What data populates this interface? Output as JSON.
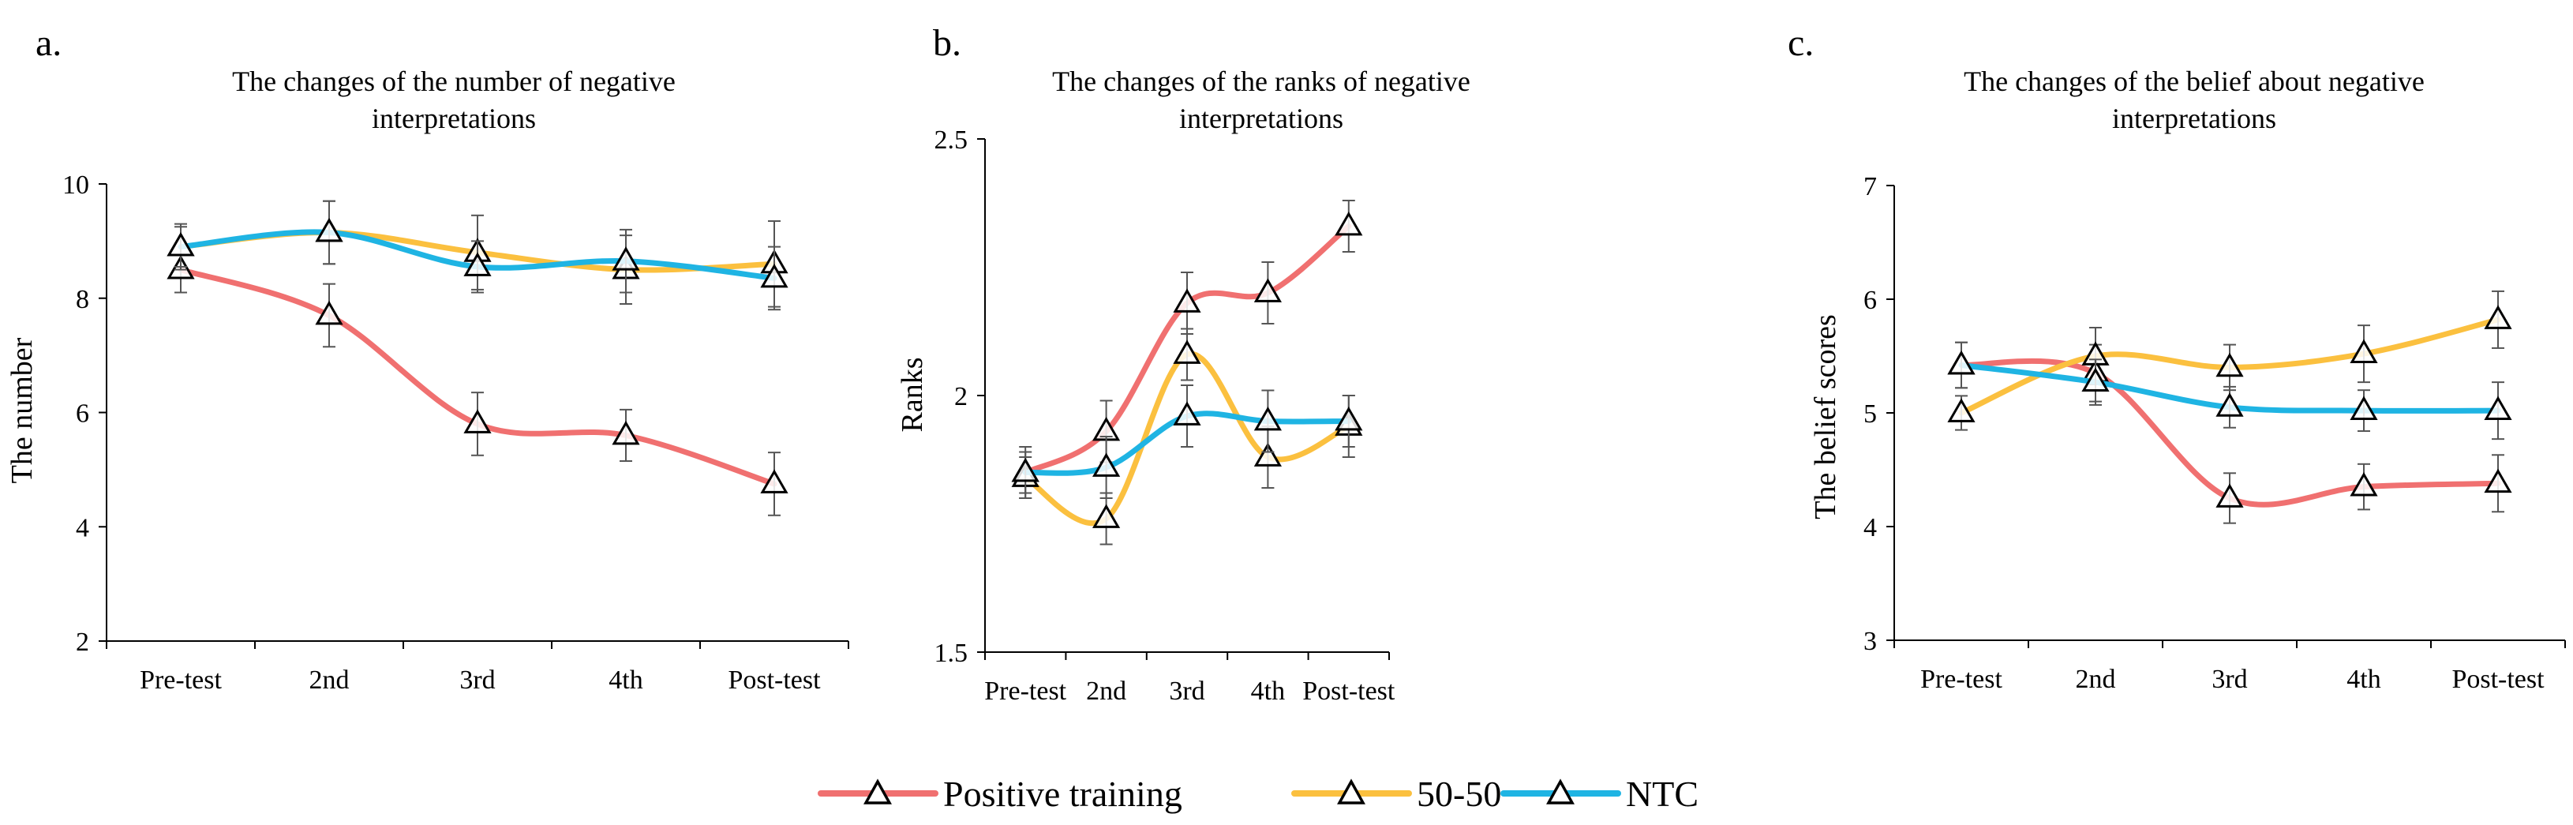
{
  "legend": {
    "series": [
      {
        "name": "Positive training",
        "color": "#f07070"
      },
      {
        "name": "50-50",
        "color": "#fbc03f"
      },
      {
        "name": "NTC",
        "color": "#1fb4e3"
      }
    ]
  },
  "chart_data": [
    {
      "type": "line",
      "panel": "a.",
      "title_lines": [
        "The changes of the number of negative",
        "interpretations"
      ],
      "xlabel": "",
      "ylabel": "The number",
      "categories": [
        "Pre-test",
        "2nd",
        "3rd",
        "4th",
        "Post-test"
      ],
      "ylim": [
        2,
        10
      ],
      "yticks": [
        "2",
        "4",
        "6",
        "8",
        "10"
      ],
      "ytick_values": [
        2,
        4,
        6,
        8,
        10
      ],
      "marker": "open-triangle",
      "series": [
        {
          "name": "Positive training",
          "values": [
            8.5,
            7.7,
            5.8,
            5.6,
            4.75
          ],
          "errors": [
            0.4,
            0.55,
            0.55,
            0.45,
            0.55
          ]
        },
        {
          "name": "50-50",
          "values": [
            8.9,
            9.15,
            8.8,
            8.5,
            8.6
          ],
          "errors": [
            0.4,
            0.55,
            0.65,
            0.6,
            0.75
          ]
        },
        {
          "name": "NTC",
          "values": [
            8.9,
            9.15,
            8.55,
            8.65,
            8.35
          ],
          "errors": [
            0.35,
            0.55,
            0.45,
            0.55,
            0.55
          ]
        }
      ]
    },
    {
      "type": "line",
      "panel": "b.",
      "title_lines": [
        "The changes of the ranks of negative",
        "interpretations"
      ],
      "xlabel": "",
      "ylabel": "Ranks",
      "categories": [
        "Pre-test",
        "2nd",
        "3rd",
        "4th",
        "Post-test"
      ],
      "ylim": [
        1.5,
        2.5
      ],
      "yticks": [
        "1.5",
        "2",
        "2.5"
      ],
      "ytick_values": [
        1.5,
        2,
        2.5
      ],
      "marker": "open-triangle",
      "series": [
        {
          "name": "Positive training",
          "values": [
            1.85,
            1.93,
            2.18,
            2.2,
            2.33
          ],
          "errors": [
            0.04,
            0.06,
            0.06,
            0.06,
            0.05
          ]
        },
        {
          "name": "50-50",
          "values": [
            1.84,
            1.76,
            2.08,
            1.88,
            1.94
          ],
          "errors": [
            0.04,
            0.05,
            0.05,
            0.06,
            0.06
          ]
        },
        {
          "name": "NTC",
          "values": [
            1.85,
            1.86,
            1.96,
            1.95,
            1.95
          ],
          "errors": [
            0.05,
            0.06,
            0.06,
            0.06,
            0.05
          ]
        }
      ]
    },
    {
      "type": "line",
      "panel": "c.",
      "title_lines": [
        "The changes of the belief about negative",
        "interpretations"
      ],
      "xlabel": "",
      "ylabel": "The belief scores",
      "categories": [
        "Pre-test",
        "2nd",
        "3rd",
        "4th",
        "Post-test"
      ],
      "ylim": [
        3,
        7
      ],
      "yticks": [
        "3",
        "4",
        "5",
        "6",
        "7"
      ],
      "ytick_values": [
        3,
        4,
        5,
        6,
        7
      ],
      "marker": "open-triangle",
      "series": [
        {
          "name": "Positive training",
          "values": [
            5.42,
            5.35,
            4.25,
            4.35,
            4.38
          ],
          "errors": [
            0.2,
            0.25,
            0.22,
            0.2,
            0.25
          ]
        },
        {
          "name": "50-50",
          "values": [
            5.0,
            5.5,
            5.4,
            5.52,
            5.82
          ],
          "errors": [
            0.15,
            0.25,
            0.2,
            0.25,
            0.25
          ]
        },
        {
          "name": "NTC",
          "values": [
            5.42,
            5.27,
            5.05,
            5.02,
            5.02
          ],
          "errors": [
            0.2,
            0.2,
            0.18,
            0.18,
            0.25
          ]
        }
      ]
    }
  ]
}
